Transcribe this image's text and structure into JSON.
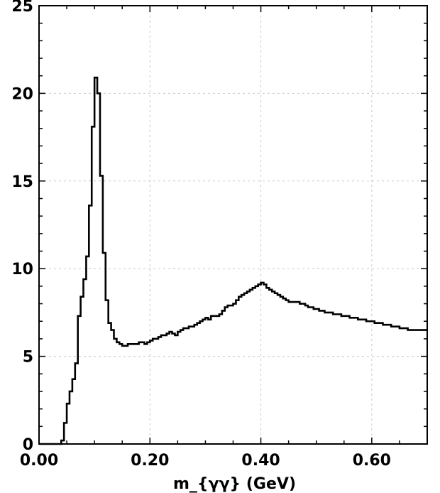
{
  "chart_data": {
    "type": "line",
    "step": true,
    "title": "",
    "xlabel": "m_{γγ} (GeV)",
    "ylabel": "",
    "xlim": [
      0.0,
      0.7
    ],
    "ylim": [
      0,
      25
    ],
    "grid": true,
    "xticks": [
      0.0,
      0.2,
      0.4,
      0.6
    ],
    "xtick_labels": [
      "0.00",
      "0.20",
      "0.40",
      "0.60"
    ],
    "yticks": [
      0,
      5,
      10,
      15,
      20,
      25
    ],
    "ytick_labels": [
      "0",
      "5",
      "10",
      "15",
      "20",
      "25"
    ],
    "bin_width": 0.005,
    "x": [
      0.0,
      0.005,
      0.01,
      0.015,
      0.02,
      0.025,
      0.03,
      0.035,
      0.04,
      0.045,
      0.05,
      0.055,
      0.06,
      0.065,
      0.07,
      0.075,
      0.08,
      0.085,
      0.09,
      0.095,
      0.1,
      0.105,
      0.11,
      0.115,
      0.12,
      0.125,
      0.13,
      0.135,
      0.14,
      0.145,
      0.15,
      0.155,
      0.16,
      0.165,
      0.17,
      0.175,
      0.18,
      0.185,
      0.19,
      0.195,
      0.2,
      0.205,
      0.21,
      0.215,
      0.22,
      0.225,
      0.23,
      0.235,
      0.24,
      0.245,
      0.25,
      0.255,
      0.26,
      0.265,
      0.27,
      0.275,
      0.28,
      0.285,
      0.29,
      0.295,
      0.3,
      0.305,
      0.31,
      0.315,
      0.32,
      0.325,
      0.33,
      0.335,
      0.34,
      0.345,
      0.35,
      0.355,
      0.36,
      0.365,
      0.37,
      0.375,
      0.38,
      0.385,
      0.39,
      0.395,
      0.4,
      0.405,
      0.41,
      0.415,
      0.42,
      0.425,
      0.43,
      0.435,
      0.44,
      0.445,
      0.45,
      0.455,
      0.46,
      0.465,
      0.47,
      0.475,
      0.48,
      0.485,
      0.49,
      0.495,
      0.5,
      0.505,
      0.51,
      0.515,
      0.52,
      0.525,
      0.53,
      0.535,
      0.54,
      0.545,
      0.55,
      0.555,
      0.56,
      0.565,
      0.57,
      0.575,
      0.58,
      0.585,
      0.59,
      0.595,
      0.6,
      0.605,
      0.61,
      0.615,
      0.62,
      0.625,
      0.63,
      0.635,
      0.64,
      0.645,
      0.65,
      0.655,
      0.66,
      0.665,
      0.67,
      0.675,
      0.68,
      0.685,
      0.69,
      0.695
    ],
    "values": [
      0,
      0,
      0,
      0,
      0,
      0,
      0,
      0,
      0.2,
      1.2,
      2.3,
      3.0,
      3.7,
      4.6,
      7.3,
      8.4,
      9.4,
      10.7,
      13.6,
      18.1,
      20.9,
      20.0,
      15.3,
      10.9,
      8.2,
      6.9,
      6.5,
      6.0,
      5.8,
      5.7,
      5.6,
      5.6,
      5.7,
      5.7,
      5.7,
      5.7,
      5.8,
      5.8,
      5.7,
      5.8,
      5.9,
      6.0,
      6.0,
      6.1,
      6.2,
      6.2,
      6.3,
      6.4,
      6.3,
      6.2,
      6.4,
      6.5,
      6.6,
      6.6,
      6.7,
      6.7,
      6.8,
      6.9,
      7.0,
      7.1,
      7.2,
      7.1,
      7.3,
      7.3,
      7.3,
      7.4,
      7.6,
      7.8,
      7.9,
      7.9,
      8.0,
      8.2,
      8.4,
      8.5,
      8.6,
      8.7,
      8.8,
      8.9,
      9.0,
      9.1,
      9.2,
      9.1,
      8.9,
      8.8,
      8.7,
      8.6,
      8.5,
      8.4,
      8.3,
      8.2,
      8.1,
      8.1,
      8.1,
      8.1,
      8.0,
      8.0,
      7.9,
      7.8,
      7.8,
      7.7,
      7.7,
      7.6,
      7.6,
      7.5,
      7.5,
      7.5,
      7.4,
      7.4,
      7.4,
      7.3,
      7.3,
      7.3,
      7.2,
      7.2,
      7.2,
      7.1,
      7.1,
      7.1,
      7.0,
      7.0,
      7.0,
      6.9,
      6.9,
      6.9,
      6.8,
      6.8,
      6.8,
      6.7,
      6.7,
      6.7,
      6.6,
      6.6,
      6.6,
      6.5,
      6.5,
      6.5,
      6.5,
      6.5,
      6.5,
      6.5
    ]
  }
}
